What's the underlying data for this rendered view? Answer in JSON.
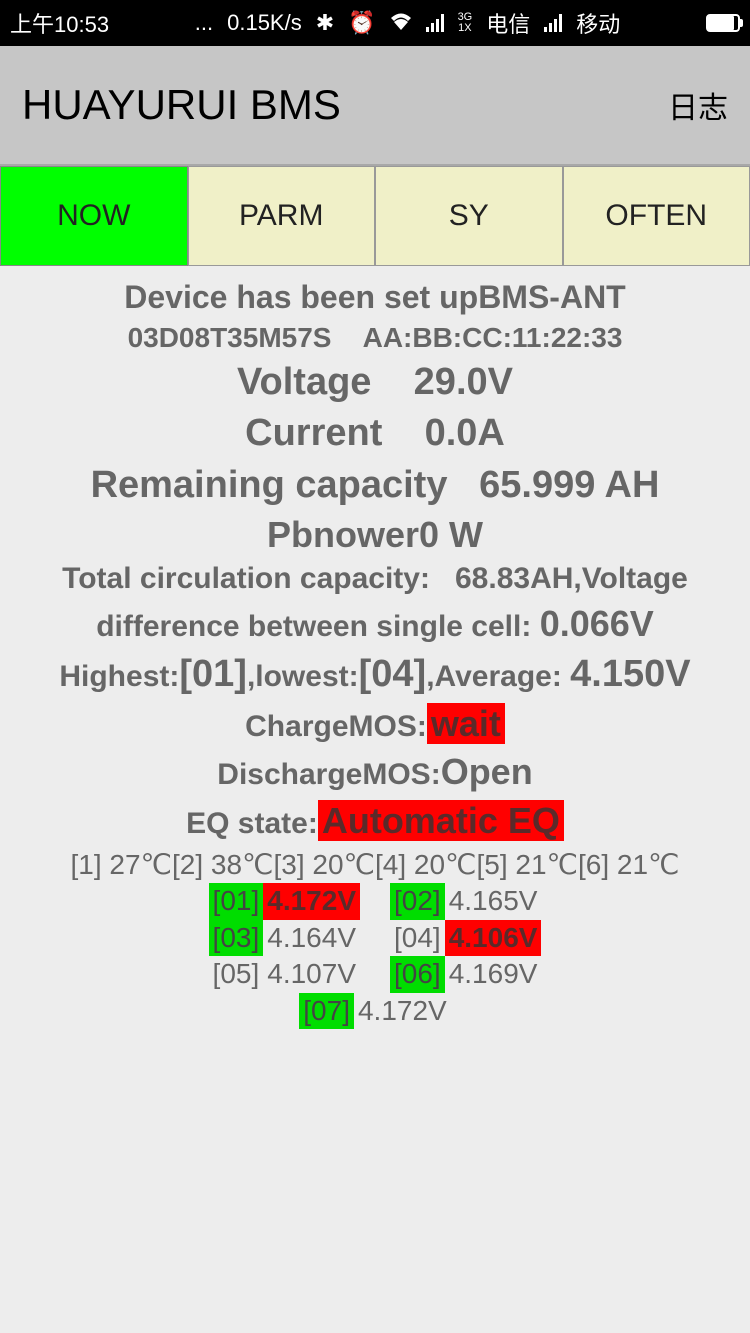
{
  "status": {
    "time": "上午10:53",
    "dots": "...",
    "speed": "0.15K/s",
    "carrier1": "电信",
    "carrier2": "移动",
    "network_type": "3G\n1X"
  },
  "app": {
    "title": "HUAYURUI BMS",
    "log": "日志"
  },
  "tabs": {
    "now": "NOW",
    "parm": "PARM",
    "sy": "SY",
    "often": "OFTEN"
  },
  "device": {
    "setup_text": "Device has been set up",
    "name": "BMS-ANT",
    "serial": "03D08T35M57S",
    "mac": "AA:BB:CC:11:22:33"
  },
  "metrics": {
    "voltage_label": "Voltage",
    "voltage_value": "29.0V",
    "current_label": "Current",
    "current_value": "0.0A",
    "remaining_label": "Remaining capacity",
    "remaining_value": "65.999 AH",
    "power_label": "Pbnower",
    "power_value": "0 W",
    "circulation_label": "Total circulation capacity:",
    "circulation_value": "68.83AH",
    "voltage_diff_label1": ",Voltage",
    "voltage_diff_label2": "difference between single cell:",
    "voltage_diff_value": "0.066V",
    "highest_label": "Highest:",
    "highest_value": "[01]",
    "lowest_label": ",lowest:",
    "lowest_value": "[04]",
    "average_label": ",Average:",
    "average_value": "4.150V",
    "chargemos_label": "ChargeMOS:",
    "chargemos_value": "wait",
    "dischargemos_label": "DischargeMOS:",
    "dischargemos_value": "Open",
    "eq_label": "EQ state:",
    "eq_value": "Automatic EQ"
  },
  "temps": "[1] 27℃[2] 38℃[3] 20℃[4] 20℃[5] 21℃[6] 21℃",
  "cells": [
    {
      "idx": "[01]",
      "val": "4.172V",
      "idx_hl": "green",
      "val_hl": "red"
    },
    {
      "idx": "[02]",
      "val": "4.165V",
      "idx_hl": "green",
      "val_hl": "none"
    },
    {
      "idx": "[03]",
      "val": "4.164V",
      "idx_hl": "green",
      "val_hl": "none"
    },
    {
      "idx": "[04]",
      "val": "4.106V",
      "idx_hl": "none",
      "val_hl": "red"
    },
    {
      "idx": "[05]",
      "val": "4.107V",
      "idx_hl": "none",
      "val_hl": "none"
    },
    {
      "idx": "[06]",
      "val": "4.169V",
      "idx_hl": "green",
      "val_hl": "none"
    },
    {
      "idx": "[07]",
      "val": "4.172V",
      "idx_hl": "green",
      "val_hl": "none"
    }
  ],
  "colors": {
    "tab_active_bg": "#00ff00",
    "tab_inactive_bg": "#f0f0c8",
    "highlight_red": "#ff0000",
    "highlight_green": "#00dd00",
    "status_bg": "#000000",
    "appbar_bg": "#c6c6c6",
    "body_bg": "#ededed",
    "text_gray": "#666666"
  }
}
